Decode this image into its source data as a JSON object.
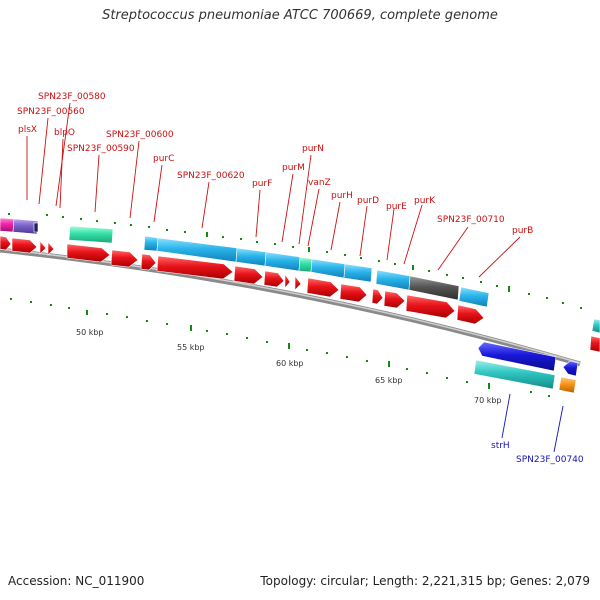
{
  "title": "Streptococcus pneumoniae ATCC 700669, complete genome",
  "footer": {
    "accession": "Accession: NC_011900",
    "stats": "Topology: circular; Length: 2,221,315 bp; Genes: 2,079"
  },
  "colors": {
    "red": "#e8131a",
    "light_blue": "#29b4ea",
    "aqua": "#2ec4c0",
    "mint": "#34e0a8",
    "gray": "#555555",
    "blue": "#1818d8",
    "orange": "#f89418",
    "magenta": "#ee22a8",
    "purple": "#7b62c8",
    "green_tick": "#158a10",
    "label_red": "#cc1010",
    "label_blue": "#1414b8"
  },
  "scale_labels": [
    "50 kbp",
    "55 kbp",
    "60 kbp",
    "65 kbp",
    "70 kbp"
  ],
  "upper_labels": [
    "plsX",
    "SPN23F_00560",
    "SPN23F_00580",
    "blpO",
    "SPN23F_00590",
    "SPN23F_00600",
    "purC",
    "SPN23F_00620",
    "purF",
    "purM",
    "purN",
    "vanZ",
    "purH",
    "purD",
    "purE",
    "purK",
    "SPN23F_00710",
    "purB"
  ],
  "lower_labels": [
    "strH",
    "SPN23F_00740"
  ]
}
